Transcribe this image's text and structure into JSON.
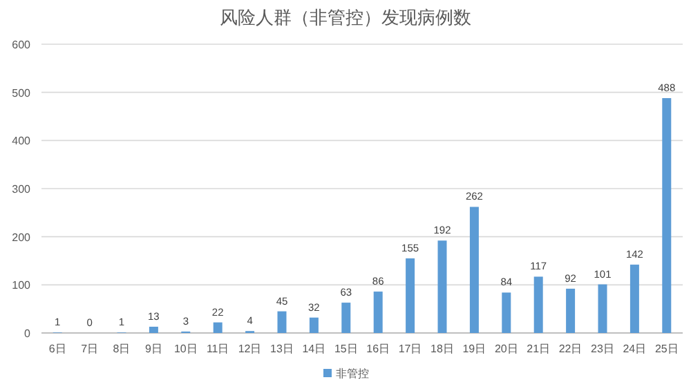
{
  "chart_data": {
    "type": "bar",
    "title": "风险人群（非管控）发现病例数",
    "categories": [
      "6日",
      "7日",
      "8日",
      "9日",
      "10日",
      "11日",
      "12日",
      "13日",
      "14日",
      "15日",
      "16日",
      "17日",
      "18日",
      "19日",
      "20日",
      "21日",
      "22日",
      "23日",
      "24日",
      "25日"
    ],
    "series": [
      {
        "name": "非管控",
        "color": "#5b9bd5",
        "values": [
          1,
          0,
          1,
          13,
          3,
          22,
          4,
          45,
          32,
          63,
          86,
          155,
          192,
          262,
          84,
          117,
          92,
          101,
          142,
          488
        ]
      }
    ],
    "ylim": [
      0,
      600
    ],
    "yticks": [
      0,
      100,
      200,
      300,
      400,
      500,
      600
    ],
    "grid": "y",
    "legend": "bottom",
    "data_labels": true
  }
}
